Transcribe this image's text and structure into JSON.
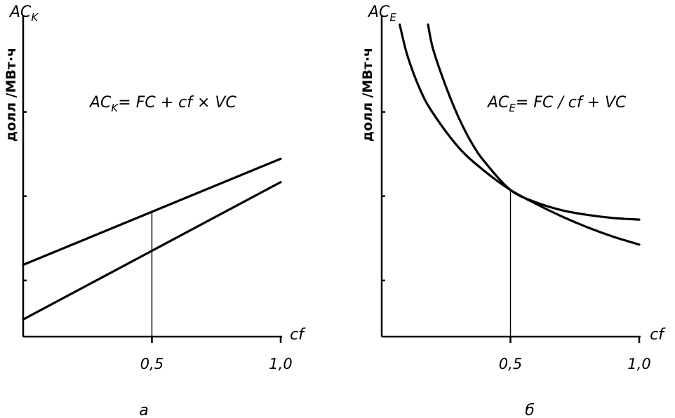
{
  "chart_data": [
    {
      "type": "line",
      "panel_label": "а",
      "title_main": "AC",
      "title_sub": "K",
      "ylabel": "долл /МВт·ч",
      "xlabel": "cf",
      "formula": {
        "lhs": "AC",
        "lhs_sub": "K",
        "rhs": "= FC + cf × VC"
      },
      "xlim": [
        0,
        1.0
      ],
      "ylim": [
        0,
        1.0
      ],
      "ticks": [
        {
          "value": 0.5,
          "label": "0,5"
        },
        {
          "value": 1.0,
          "label": "1,0"
        }
      ],
      "guide_x": 0.5,
      "series": [
        {
          "x": [
            0,
            1.0
          ],
          "y": [
            0.23,
            0.57
          ]
        },
        {
          "x": [
            0,
            1.0
          ],
          "y": [
            0.055,
            0.495
          ]
        }
      ]
    },
    {
      "type": "line",
      "panel_label": "б",
      "title_main": "AC",
      "title_sub": "E",
      "ylabel": "долл /МВт·ч",
      "xlabel": "cf",
      "formula": {
        "lhs": "AC",
        "lhs_sub": "E",
        "rhs": "= FC / cf + VC"
      },
      "xlim": [
        0,
        1.0
      ],
      "ylim": [
        0,
        1.0
      ],
      "ticks": [
        {
          "value": 0.5,
          "label": "0,5"
        },
        {
          "value": 1.0,
          "label": "1,0"
        }
      ],
      "guide_x": 0.5,
      "series": [
        {
          "x": [
            0.07,
            0.1,
            0.15,
            0.2,
            0.3,
            0.4,
            0.5,
            0.6,
            0.7,
            0.8,
            0.9,
            1.0
          ],
          "y": [
            1.0,
            0.9,
            0.79,
            0.715,
            0.605,
            0.53,
            0.47,
            0.425,
            0.385,
            0.35,
            0.32,
            0.295
          ]
        },
        {
          "x": [
            0.18,
            0.2,
            0.25,
            0.3,
            0.35,
            0.4,
            0.5,
            0.6,
            0.7,
            0.8,
            0.9,
            1.0
          ],
          "y": [
            1.0,
            0.92,
            0.8,
            0.7,
            0.62,
            0.56,
            0.47,
            0.43,
            0.405,
            0.39,
            0.38,
            0.375
          ]
        }
      ]
    }
  ]
}
